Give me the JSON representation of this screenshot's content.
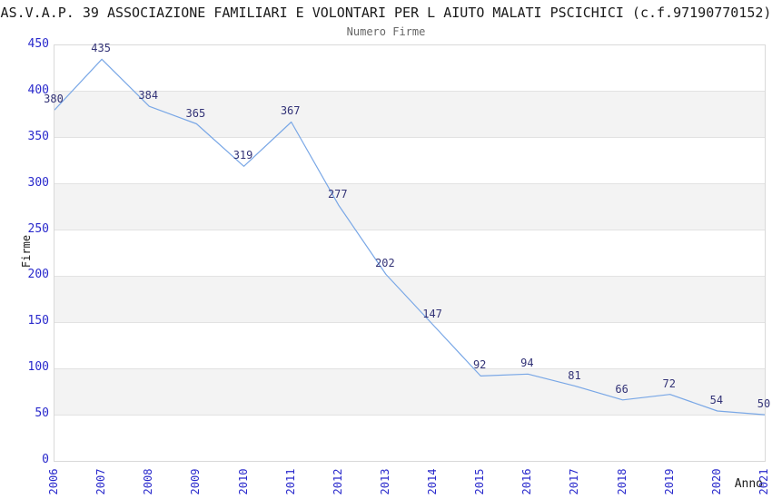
{
  "header": {
    "title": "AS.V.A.P. 39 ASSOCIAZIONE FAMILIARI E VOLONTARI PER L AIUTO MALATI PSCICHICI (c.f.97190770152)",
    "subtitle": "Numero Firme"
  },
  "chart_data": {
    "type": "line",
    "title": "Numero Firme",
    "xlabel": "Anno",
    "ylabel": "Firme",
    "categories": [
      "2006",
      "2007",
      "2008",
      "2009",
      "2010",
      "2011",
      "2012",
      "2013",
      "2014",
      "2015",
      "2016",
      "2017",
      "2018",
      "2019",
      "2020",
      "2021"
    ],
    "values": [
      380,
      435,
      384,
      365,
      319,
      367,
      277,
      202,
      147,
      92,
      94,
      81,
      66,
      72,
      54,
      50
    ],
    "ylim": [
      0,
      450
    ],
    "ytick_step": 50,
    "grid": "horizontal-bands",
    "legend": "none",
    "point_labels": true,
    "colors": {
      "line": "#79a7e6",
      "axis_tick_label": "#2929cc",
      "point_label": "#333377",
      "band": "#f3f3f3",
      "gridline": "#e2e2e2",
      "plot_border": "#d9d9d9",
      "title": "#1a1a1a",
      "subtitle": "#666666"
    }
  }
}
